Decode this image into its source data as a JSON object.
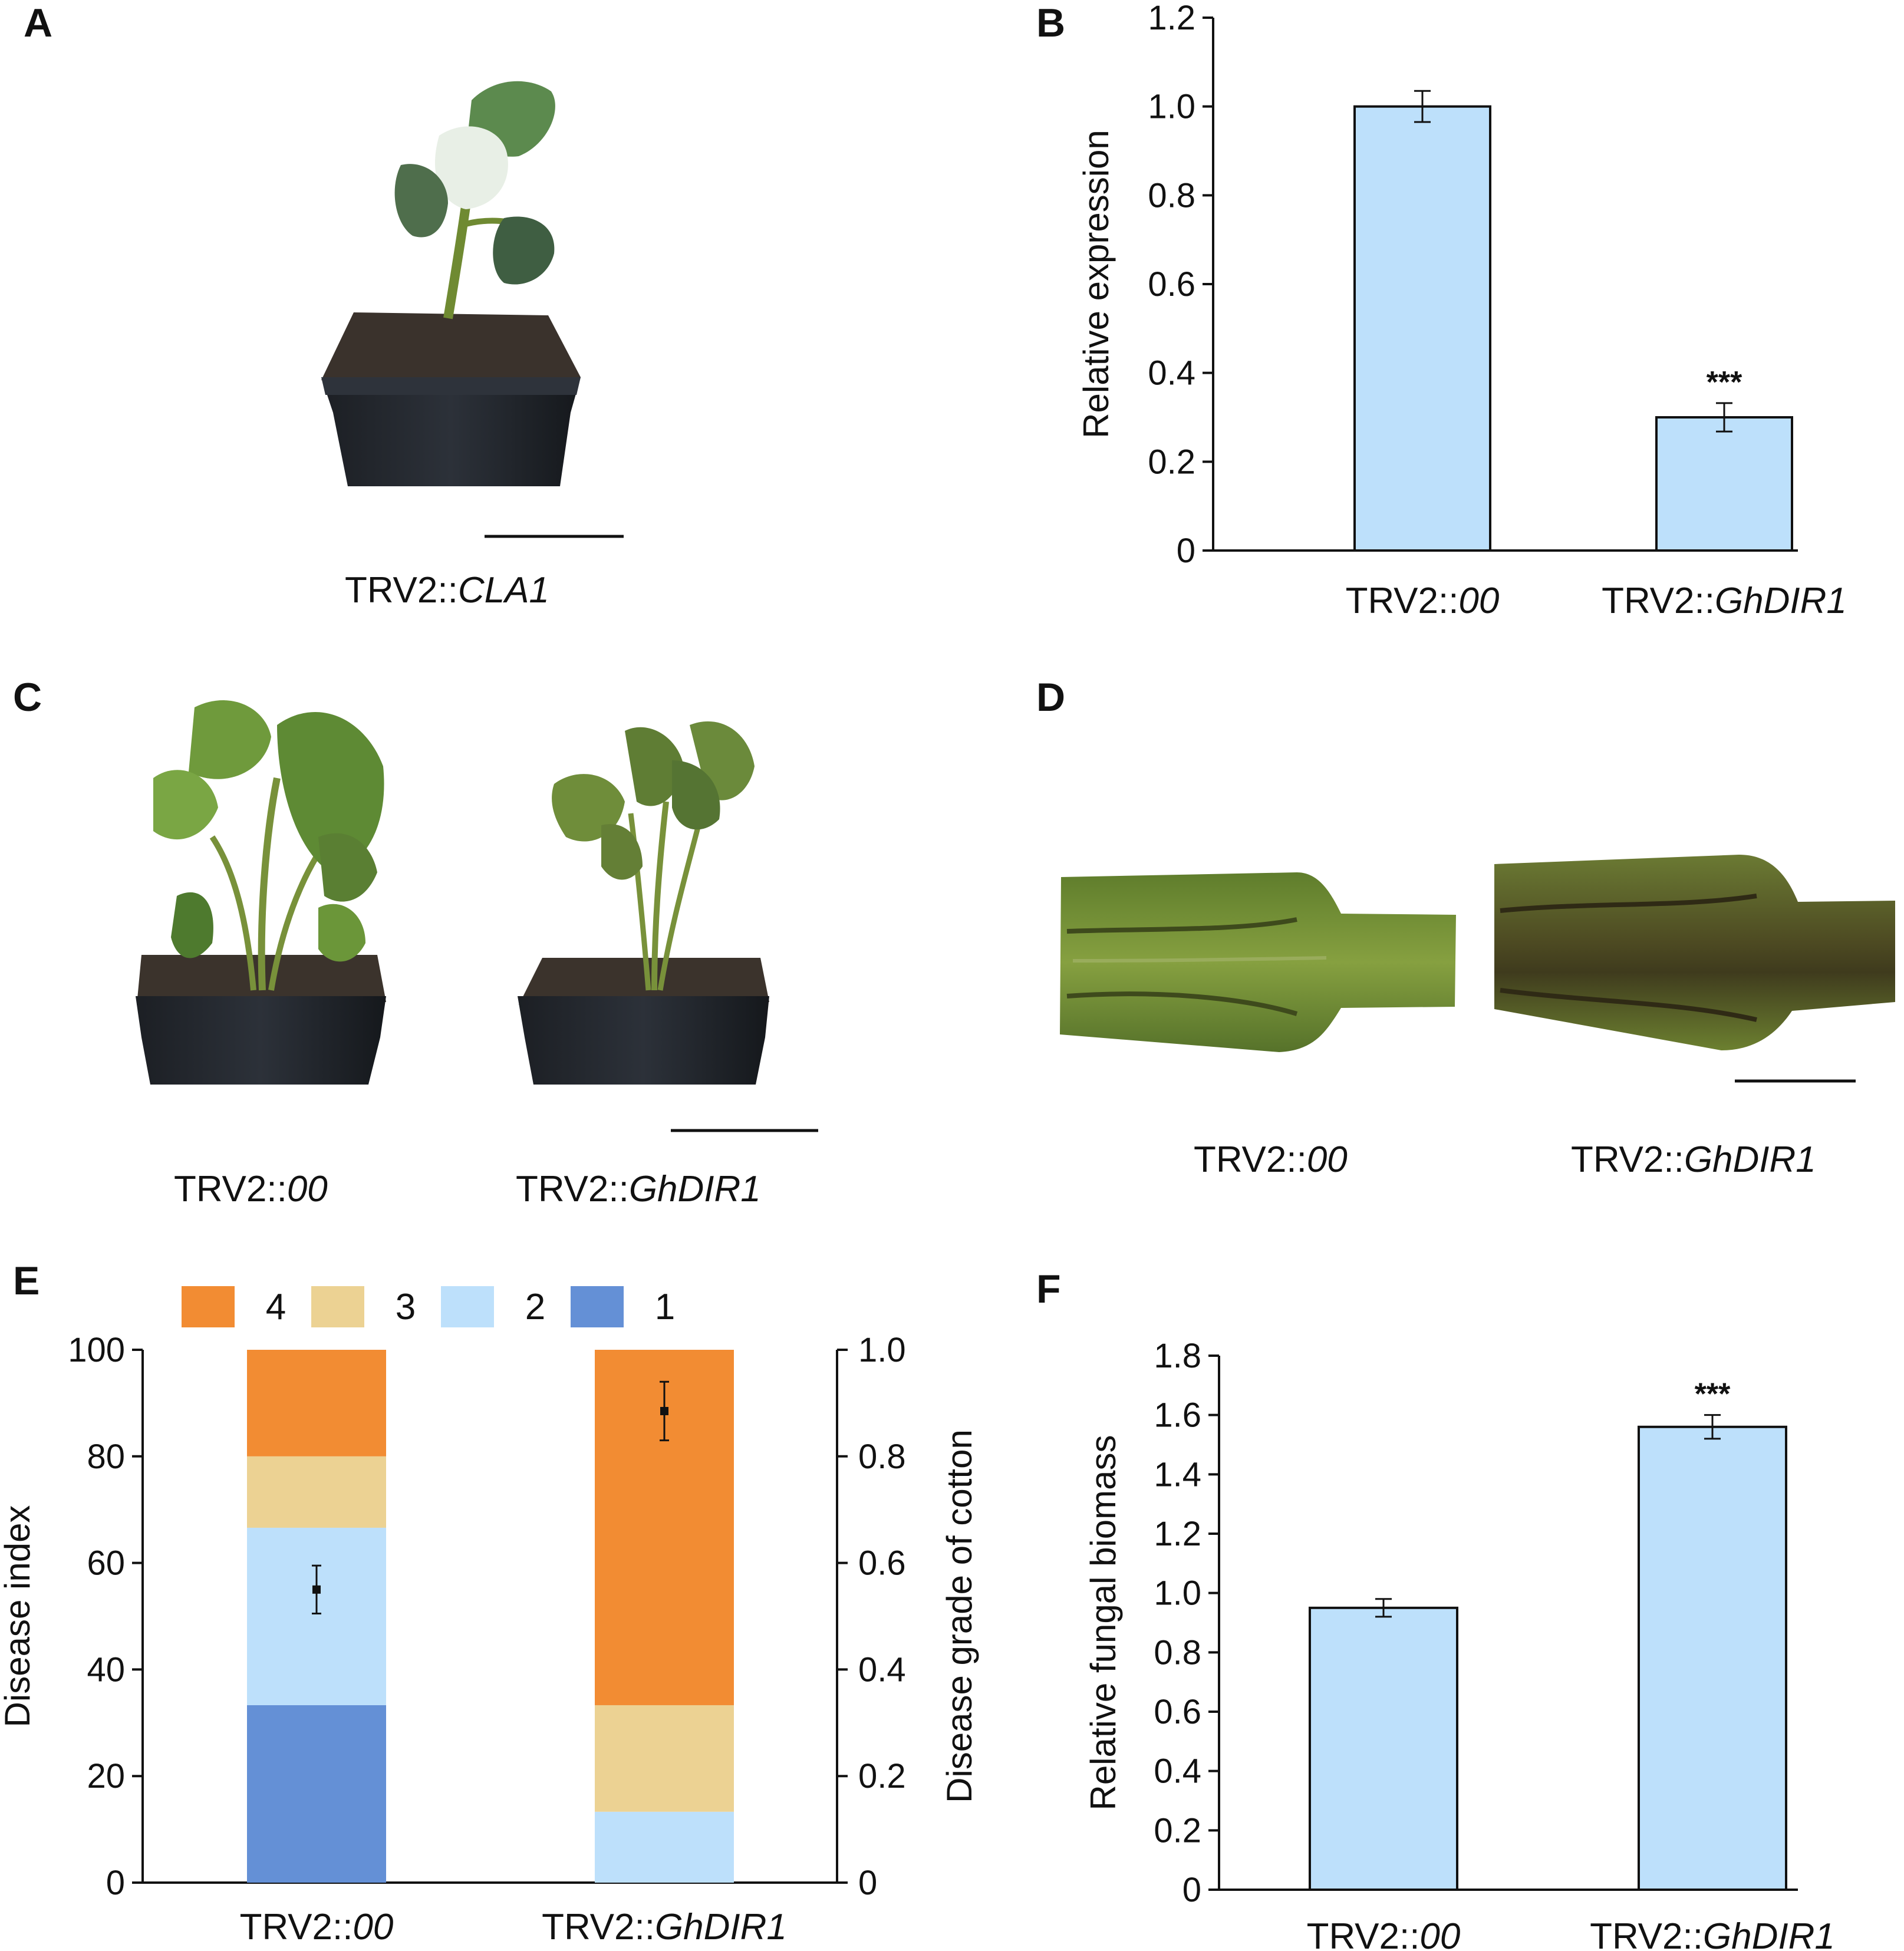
{
  "panels": {
    "A": {
      "letter": "A",
      "caption_prefix": "TRV2::",
      "caption_gene": "CLA1"
    },
    "B": {
      "letter": "B"
    },
    "C": {
      "letter": "C",
      "captions": [
        {
          "prefix": "TRV2::",
          "gene": "00"
        },
        {
          "prefix": "TRV2::",
          "gene": "GhDIR1"
        }
      ]
    },
    "D": {
      "letter": "D",
      "captions": [
        {
          "prefix": "TRV2::",
          "gene": "00"
        },
        {
          "prefix": "TRV2::",
          "gene": "GhDIR1"
        }
      ]
    },
    "E": {
      "letter": "E"
    },
    "F": {
      "letter": "F"
    }
  },
  "colors": {
    "bar_fill": "#bde0fb",
    "grade4": "#f28c33",
    "grade3": "#ecd293",
    "grade2": "#bde0fb",
    "grade1": "#6490d6"
  },
  "chart_data": [
    {
      "id": "B",
      "type": "bar",
      "categories": [
        {
          "prefix": "TRV2::",
          "gene": "00"
        },
        {
          "prefix": "TRV2::",
          "gene": "GhDIR1"
        }
      ],
      "values": [
        1.0,
        0.3
      ],
      "errors": [
        0.035,
        0.032
      ],
      "significance": [
        "",
        "***"
      ],
      "ylabel": "Relative expression",
      "ylim": [
        0,
        1.2
      ],
      "yticks": [
        "0",
        "0.2",
        "0.4",
        "0.6",
        "0.8",
        "1.0",
        "1.2"
      ],
      "ytick_values": [
        0,
        0.2,
        0.4,
        0.6,
        0.8,
        1.0,
        1.2
      ]
    },
    {
      "id": "E",
      "type": "bar",
      "stacked": true,
      "categories": [
        {
          "prefix": "TRV2::",
          "gene": "00"
        },
        {
          "prefix": "TRV2::",
          "gene": "GhDIR1"
        }
      ],
      "series": [
        {
          "name": "1",
          "values": [
            33.3,
            0
          ]
        },
        {
          "name": "2",
          "values": [
            33.3,
            13.3
          ]
        },
        {
          "name": "3",
          "values": [
            13.4,
            20.0
          ]
        },
        {
          "name": "4",
          "values": [
            20.0,
            66.7
          ]
        }
      ],
      "legend_order": [
        "4",
        "3",
        "2",
        "1"
      ],
      "legend_position": "top",
      "ylabel": "Disease index",
      "ylim": [
        0,
        100
      ],
      "yticks": [
        "0",
        "20",
        "40",
        "60",
        "80",
        "100"
      ],
      "ytick_values": [
        0,
        20,
        40,
        60,
        80,
        100
      ],
      "y2label": "Disease grade of cotton",
      "y2lim": [
        0,
        1.0
      ],
      "y2ticks": [
        "0",
        "0.2",
        "0.4",
        "0.6",
        "0.8",
        "1.0"
      ],
      "y2tick_values": [
        0,
        0.2,
        0.4,
        0.6,
        0.8,
        1.0
      ],
      "points": [
        {
          "value": 0.55,
          "error": 0.045
        },
        {
          "value": 0.885,
          "error": 0.055
        }
      ]
    },
    {
      "id": "F",
      "type": "bar",
      "categories": [
        {
          "prefix": "TRV2::",
          "gene": "00"
        },
        {
          "prefix": "TRV2::",
          "gene": "GhDIR1"
        }
      ],
      "values": [
        0.95,
        1.56
      ],
      "errors": [
        0.03,
        0.04
      ],
      "significance": [
        "",
        "***"
      ],
      "ylabel": "Relative fungal biomass",
      "ylim": [
        0,
        1.8
      ],
      "yticks": [
        "0",
        "0.2",
        "0.4",
        "0.6",
        "0.8",
        "1.0",
        "1.2",
        "1.4",
        "1.6",
        "1.8"
      ],
      "ytick_values": [
        0,
        0.2,
        0.4,
        0.6,
        0.8,
        1.0,
        1.2,
        1.4,
        1.6,
        1.8
      ]
    }
  ]
}
